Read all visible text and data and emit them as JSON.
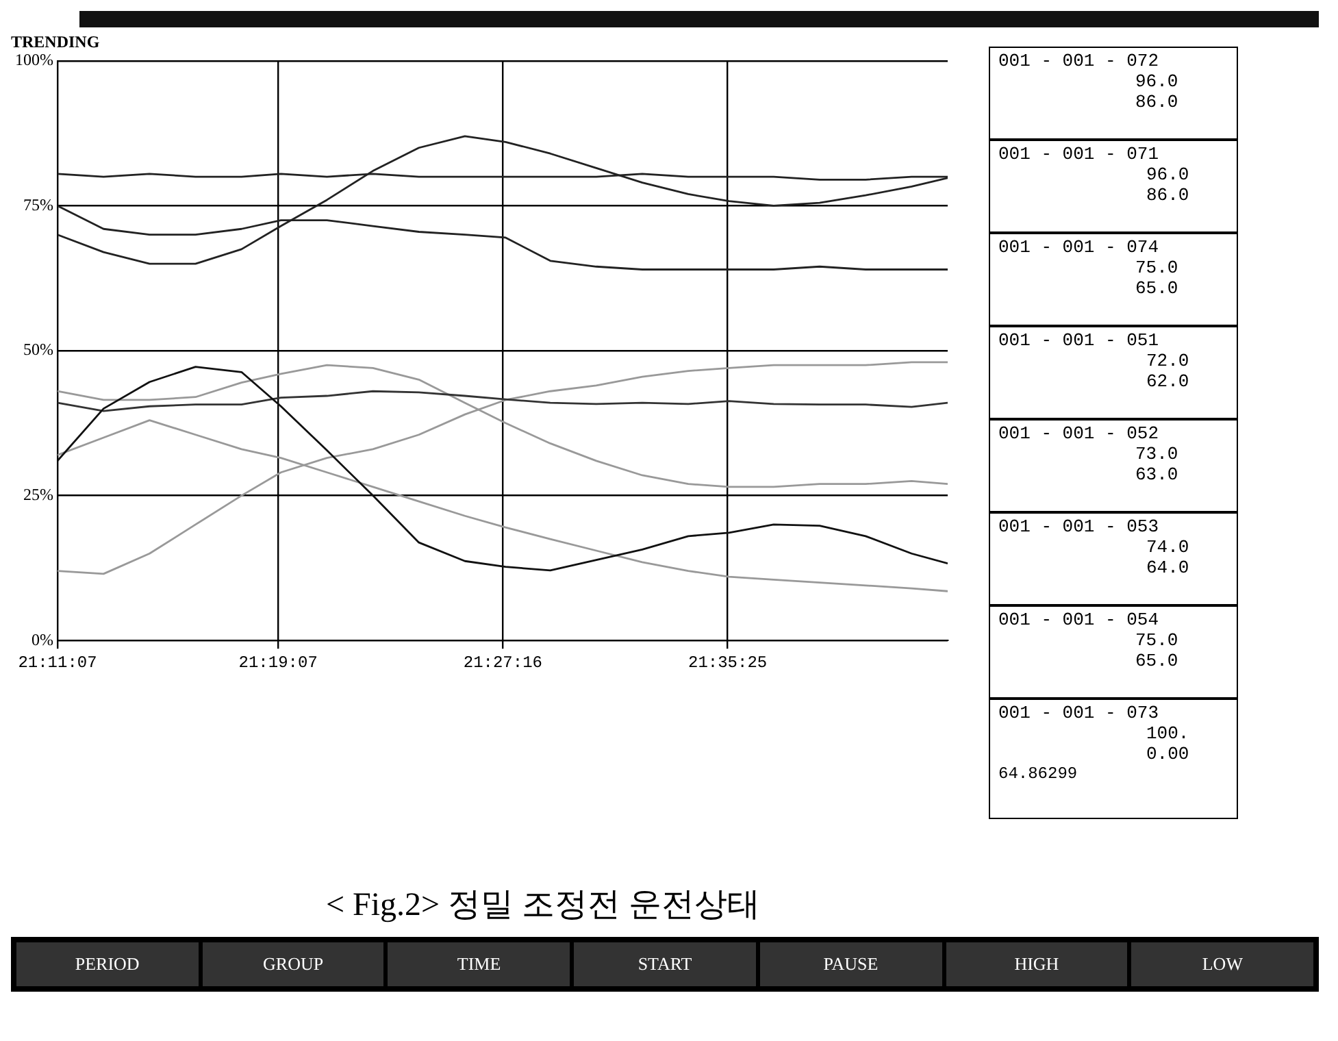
{
  "chart_data": [
    {
      "type": "line",
      "title": "TRENDING",
      "x": [
        21.18528,
        21.2131,
        21.2409,
        21.2687,
        21.2965,
        21.3203,
        21.3481,
        21.3759,
        21.4037,
        21.4315,
        21.4561,
        21.4831,
        21.5109,
        21.5387,
        21.5665,
        21.5911,
        21.6181,
        21.6459,
        21.6737,
        21.7015,
        21.7233
      ],
      "series": [
        {
          "color": "#222222",
          "values": [
            80.5,
            80,
            80.5,
            80,
            80,
            80.5,
            80,
            80.5,
            80,
            80,
            80,
            80,
            80,
            80.5,
            80,
            80,
            80,
            79.5,
            79.5,
            80,
            80
          ]
        },
        {
          "color": "#222222",
          "values": [
            70,
            67,
            65,
            65,
            67.5,
            71.5,
            76,
            81,
            85,
            87,
            86,
            84,
            81.5,
            79,
            77,
            75.8,
            75,
            75.5,
            76.8,
            78.3,
            79.8
          ]
        },
        {
          "color": "#222222",
          "values": [
            75,
            71,
            70,
            70,
            71,
            72.5,
            72.5,
            71.5,
            70.5,
            70,
            69.5,
            65.5,
            64.5,
            64,
            64,
            64,
            64,
            64.5,
            64,
            64,
            64
          ]
        },
        {
          "color": "#111111",
          "values": [
            31,
            40,
            44.6,
            47.2,
            46.3,
            40.4,
            32.8,
            25,
            16.9,
            13.7,
            12.7,
            12.1,
            13.9,
            15.7,
            18,
            18.6,
            20,
            19.8,
            18,
            15,
            13.3
          ]
        },
        {
          "color": "#333333",
          "values": [
            41,
            39.6,
            40.4,
            40.7,
            40.7,
            41.9,
            42.2,
            43,
            42.8,
            42.2,
            41.6,
            41,
            40.8,
            41,
            40.8,
            41.3,
            40.8,
            40.7,
            40.7,
            40.3,
            41
          ]
        },
        {
          "color": "#999999",
          "values": [
            43,
            41.5,
            41.5,
            42,
            44.5,
            46,
            47.5,
            47,
            45,
            41,
            37.5,
            34,
            31,
            28.5,
            27,
            26.5,
            26.5,
            27,
            27,
            27.5,
            27
          ]
        },
        {
          "color": "#999999",
          "values": [
            32,
            35,
            38,
            35.5,
            33,
            31.5,
            29,
            26.5,
            24,
            21.5,
            19.5,
            17.5,
            15.5,
            13.5,
            12,
            11,
            10.5,
            10,
            9.5,
            9,
            8.5
          ]
        },
        {
          "color": "#999999",
          "values": [
            12,
            11.5,
            15,
            20,
            25,
            29,
            31.5,
            33,
            35.5,
            39,
            41.5,
            43,
            44,
            45.5,
            46.5,
            47,
            47.5,
            47.5,
            47.5,
            48,
            48
          ]
        }
      ],
      "xlim": [
        21.18528,
        21.7233
      ],
      "xticks": [
        {
          "value": 21.18528,
          "label": "21:11:07"
        },
        {
          "value": 21.31861,
          "label": "21:19:07"
        },
        {
          "value": 21.45444,
          "label": "21:27:16"
        },
        {
          "value": 21.59028,
          "label": "21:35:25"
        }
      ],
      "ylim": [
        0,
        100
      ],
      "yticks": [
        {
          "value": 0,
          "label": "0%"
        },
        {
          "value": 25,
          "label": "25%"
        },
        {
          "value": 50,
          "label": "50%"
        },
        {
          "value": 75,
          "label": "75%"
        },
        {
          "value": 100,
          "label": "100%"
        }
      ],
      "grid": true,
      "marker": "none",
      "line_style": "solid",
      "annotations": [
        "< Fig.2> 정밀 조정전 운전상태"
      ]
    },
    {
      "type": "other",
      "annotations": [
        "001 - 001 - 072",
        "96.0",
        "86.0",
        "001 - 001 - 071",
        "96.0",
        "86.0",
        "001 - 001 - 074",
        "75.0",
        "65.0",
        "001 - 001 - 051",
        "72.0",
        "62.0",
        "001 - 001 - 052",
        "73.0",
        "63.0",
        "001 - 001 - 053",
        "74.0",
        "64.0",
        "001 - 001 - 054",
        "75.0",
        "65.0",
        "001 - 001 - 073",
        "100.",
        "0.00",
        "64.86299"
      ]
    },
    {
      "type": "other",
      "annotations": [
        "PERIOD",
        "GROUP",
        "TIME",
        "START",
        "PAUSE",
        "HIGH",
        "LOW"
      ]
    }
  ]
}
